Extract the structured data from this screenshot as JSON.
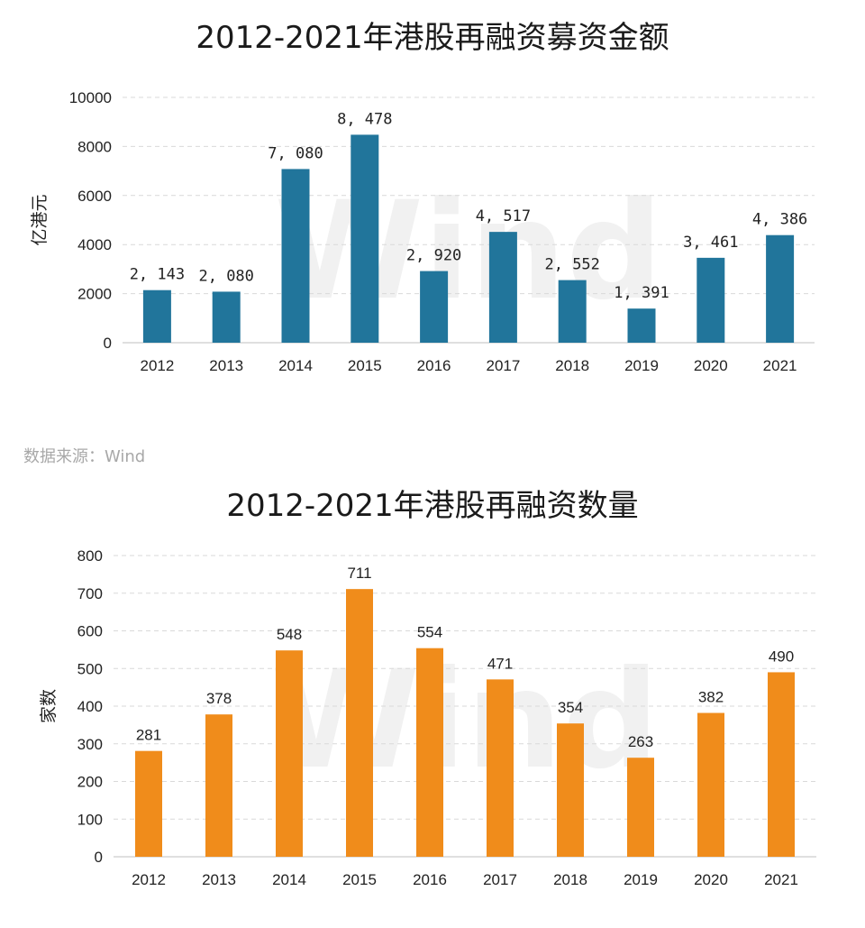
{
  "title1": "2012-2021年港股再融资募资金额",
  "title2": "2012-2021年港股再融资数量",
  "source": "数据来源：Wind",
  "watermark": "Wind",
  "chart_data": [
    {
      "type": "bar",
      "title": "2012-2021年港股再融资募资金额",
      "ylabel": "亿港元",
      "xlabel": "",
      "categories": [
        "2012",
        "2013",
        "2014",
        "2015",
        "2016",
        "2017",
        "2018",
        "2019",
        "2020",
        "2021"
      ],
      "values": [
        2143,
        2080,
        7080,
        8478,
        2920,
        4517,
        2552,
        1391,
        3461,
        4386
      ],
      "value_labels": [
        "2, 143",
        "2, 080",
        "7, 080",
        "8, 478",
        "2, 920",
        "4, 517",
        "2, 552",
        "1, 391",
        "3, 461",
        "4, 386"
      ],
      "ylim": [
        0,
        10000
      ],
      "yticks": [
        "0",
        "2000",
        "4000",
        "6000",
        "8000",
        "10000"
      ],
      "ytick_values": [
        0,
        2000,
        4000,
        6000,
        8000,
        10000
      ],
      "color": "#21759b",
      "grid": true,
      "legend": "none"
    },
    {
      "type": "bar",
      "title": "2012-2021年港股再融资数量",
      "ylabel": "家数",
      "xlabel": "",
      "categories": [
        "2012",
        "2013",
        "2014",
        "2015",
        "2016",
        "2017",
        "2018",
        "2019",
        "2020",
        "2021"
      ],
      "values": [
        281,
        378,
        548,
        711,
        554,
        471,
        354,
        263,
        382,
        490
      ],
      "value_labels": [
        "281",
        "378",
        "548",
        "711",
        "554",
        "471",
        "354",
        "263",
        "382",
        "490"
      ],
      "ylim": [
        0,
        800
      ],
      "yticks": [
        "0",
        "100",
        "200",
        "300",
        "400",
        "500",
        "600",
        "700",
        "800"
      ],
      "ytick_values": [
        0,
        100,
        200,
        300,
        400,
        500,
        600,
        700,
        800
      ],
      "color": "#f08c1b",
      "grid": true,
      "legend": "none"
    }
  ]
}
